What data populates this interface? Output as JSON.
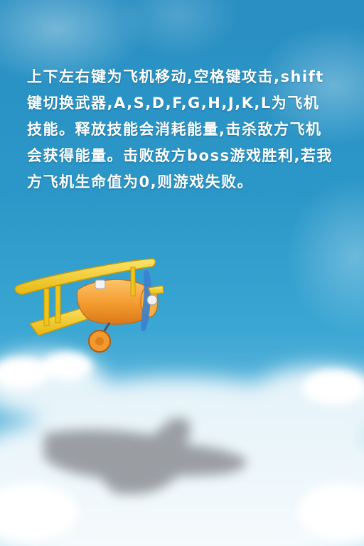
{
  "instructions": {
    "text": "上下左右键为飞机移动,空格键攻击,shift键切换武器,A,S,D,F,G,H,J,K,L为飞机技能。释放技能会消耗能量,击杀敌方飞机会获得能量。击败敌方boss游戏胜利,若我方飞机生命值为0,则游戏失败。"
  },
  "colors": {
    "sky_top": "#2a8fc2",
    "sky_mid": "#3aa6d3",
    "cloud": "#ffffff",
    "plane_body": "#f7a53a",
    "plane_wing": "#f2cc1f",
    "propeller": "#3a7fd0"
  },
  "icons": {
    "player_plane": "biplane-icon",
    "cloud_shadow": "plane-shadow-icon"
  }
}
